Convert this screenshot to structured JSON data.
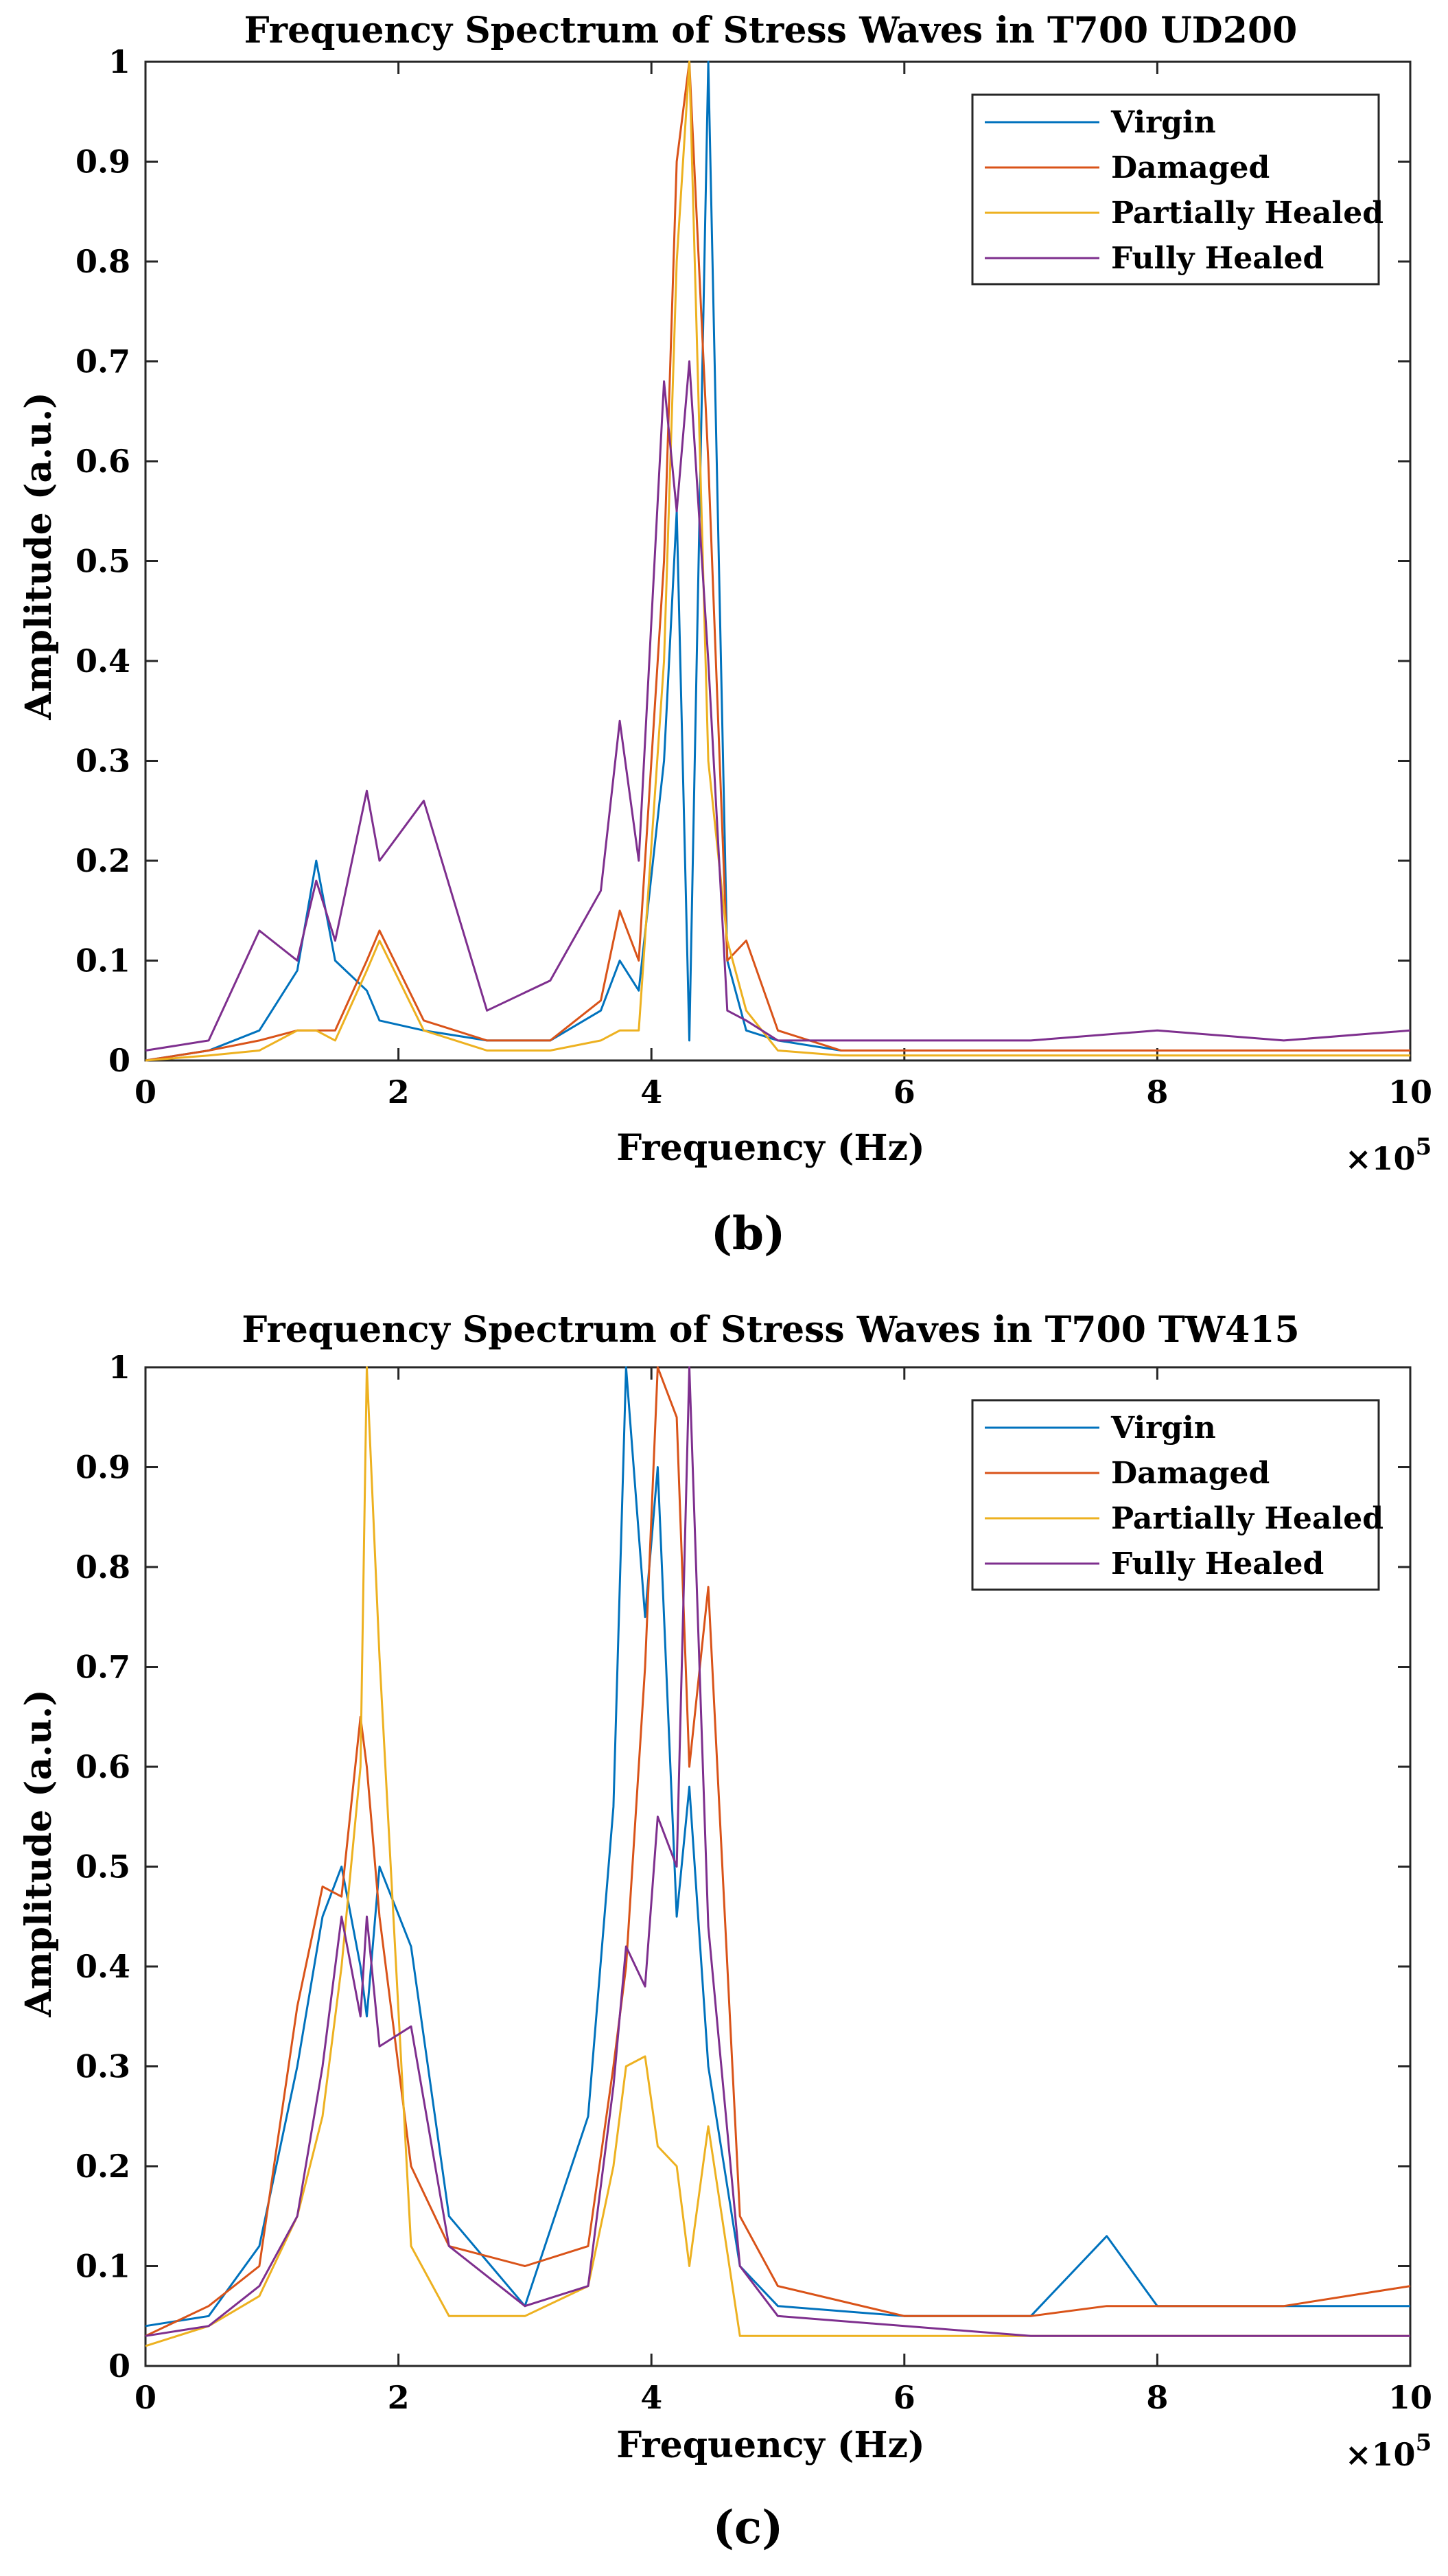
{
  "colors": {
    "virgin": "#0072BD",
    "damaged": "#D95319",
    "partially_healed": "#EDB120",
    "fully_healed": "#7E2F8E"
  },
  "chart_data": [
    {
      "id": "b",
      "type": "line",
      "panel_label": "(b)",
      "title": "Frequency Spectrum of Stress Waves in T700 UD200",
      "xlabel": "Frequency (Hz)",
      "ylabel": "Amplitude (a.u.)",
      "x_exponent_label": "×10",
      "x_exponent_power": "5",
      "xlim": [
        0,
        10
      ],
      "ylim": [
        0,
        1
      ],
      "xticks": [
        "0",
        "2",
        "4",
        "6",
        "8",
        "10"
      ],
      "yticks": [
        "0",
        "0.1",
        "0.2",
        "0.3",
        "0.4",
        "0.5",
        "0.6",
        "0.7",
        "0.8",
        "0.9",
        "1"
      ],
      "legend_position": "top-right",
      "x": [
        0,
        0.5,
        0.9,
        1.2,
        1.35,
        1.5,
        1.75,
        1.85,
        2.2,
        2.7,
        3.2,
        3.6,
        3.75,
        3.9,
        4.1,
        4.2,
        4.3,
        4.45,
        4.6,
        4.75,
        5.0,
        5.5,
        6,
        7,
        8,
        9,
        10
      ],
      "series": [
        {
          "name": "Virgin",
          "color_key": "virgin",
          "values": [
            0,
            0.01,
            0.03,
            0.09,
            0.2,
            0.1,
            0.07,
            0.04,
            0.03,
            0.02,
            0.02,
            0.05,
            0.1,
            0.07,
            0.3,
            0.55,
            0.02,
            1.0,
            0.1,
            0.03,
            0.02,
            0.01,
            0.01,
            0.01,
            0.01,
            0.01,
            0.01
          ]
        },
        {
          "name": "Damaged",
          "color_key": "damaged",
          "values": [
            0,
            0.01,
            0.02,
            0.03,
            0.03,
            0.03,
            0.1,
            0.13,
            0.04,
            0.02,
            0.02,
            0.06,
            0.15,
            0.1,
            0.5,
            0.9,
            1.0,
            0.6,
            0.1,
            0.12,
            0.03,
            0.01,
            0.01,
            0.01,
            0.01,
            0.01,
            0.01
          ]
        },
        {
          "name": "Partially Healed",
          "color_key": "partially_healed",
          "values": [
            0,
            0.005,
            0.01,
            0.03,
            0.03,
            0.02,
            0.09,
            0.12,
            0.03,
            0.01,
            0.01,
            0.02,
            0.03,
            0.03,
            0.4,
            0.8,
            1.0,
            0.3,
            0.12,
            0.05,
            0.01,
            0.005,
            0.005,
            0.005,
            0.005,
            0.005,
            0.005
          ]
        },
        {
          "name": "Fully Healed",
          "color_key": "fully_healed",
          "values": [
            0.01,
            0.02,
            0.13,
            0.1,
            0.18,
            0.12,
            0.27,
            0.2,
            0.26,
            0.05,
            0.08,
            0.17,
            0.34,
            0.2,
            0.68,
            0.55,
            0.7,
            0.4,
            0.05,
            0.04,
            0.02,
            0.02,
            0.02,
            0.02,
            0.03,
            0.02,
            0.03
          ]
        }
      ]
    },
    {
      "id": "c",
      "type": "line",
      "panel_label": "(c)",
      "title": "Frequency Spectrum of Stress Waves in T700 TW415",
      "xlabel": "Frequency (Hz)",
      "ylabel": "Amplitude (a.u.)",
      "x_exponent_label": "×10",
      "x_exponent_power": "5",
      "xlim": [
        0,
        10
      ],
      "ylim": [
        0,
        1
      ],
      "xticks": [
        "0",
        "2",
        "4",
        "6",
        "8",
        "10"
      ],
      "yticks": [
        "0",
        "0.1",
        "0.2",
        "0.3",
        "0.4",
        "0.5",
        "0.6",
        "0.7",
        "0.8",
        "0.9",
        "1"
      ],
      "legend_position": "top-right",
      "x": [
        0,
        0.5,
        0.9,
        1.2,
        1.4,
        1.55,
        1.7,
        1.75,
        1.85,
        2.1,
        2.4,
        3.0,
        3.5,
        3.7,
        3.8,
        3.95,
        4.05,
        4.2,
        4.3,
        4.45,
        4.7,
        5.0,
        6,
        7,
        7.6,
        8,
        9,
        10
      ],
      "series": [
        {
          "name": "Virgin",
          "color_key": "virgin",
          "values": [
            0.04,
            0.05,
            0.12,
            0.3,
            0.45,
            0.5,
            0.4,
            0.35,
            0.5,
            0.42,
            0.15,
            0.06,
            0.25,
            0.56,
            1.0,
            0.75,
            0.9,
            0.45,
            0.58,
            0.3,
            0.1,
            0.06,
            0.05,
            0.05,
            0.13,
            0.06,
            0.06,
            0.06
          ]
        },
        {
          "name": "Damaged",
          "color_key": "damaged",
          "values": [
            0.03,
            0.06,
            0.1,
            0.36,
            0.48,
            0.47,
            0.65,
            0.6,
            0.45,
            0.2,
            0.12,
            0.1,
            0.12,
            0.3,
            0.4,
            0.7,
            1.0,
            0.95,
            0.6,
            0.78,
            0.15,
            0.08,
            0.05,
            0.05,
            0.06,
            0.06,
            0.06,
            0.08
          ]
        },
        {
          "name": "Partially Healed",
          "color_key": "partially_healed",
          "values": [
            0.02,
            0.04,
            0.07,
            0.15,
            0.25,
            0.4,
            0.6,
            1.0,
            0.71,
            0.12,
            0.05,
            0.05,
            0.08,
            0.2,
            0.3,
            0.31,
            0.22,
            0.2,
            0.1,
            0.24,
            0.03,
            0.03,
            0.03,
            0.03,
            0.03,
            0.03,
            0.03,
            0.03
          ]
        },
        {
          "name": "Fully Healed",
          "color_key": "fully_healed",
          "values": [
            0.03,
            0.04,
            0.08,
            0.15,
            0.3,
            0.45,
            0.35,
            0.45,
            0.32,
            0.34,
            0.12,
            0.06,
            0.08,
            0.28,
            0.42,
            0.38,
            0.55,
            0.5,
            1.0,
            0.44,
            0.1,
            0.05,
            0.04,
            0.03,
            0.03,
            0.03,
            0.03,
            0.03
          ]
        }
      ]
    }
  ]
}
